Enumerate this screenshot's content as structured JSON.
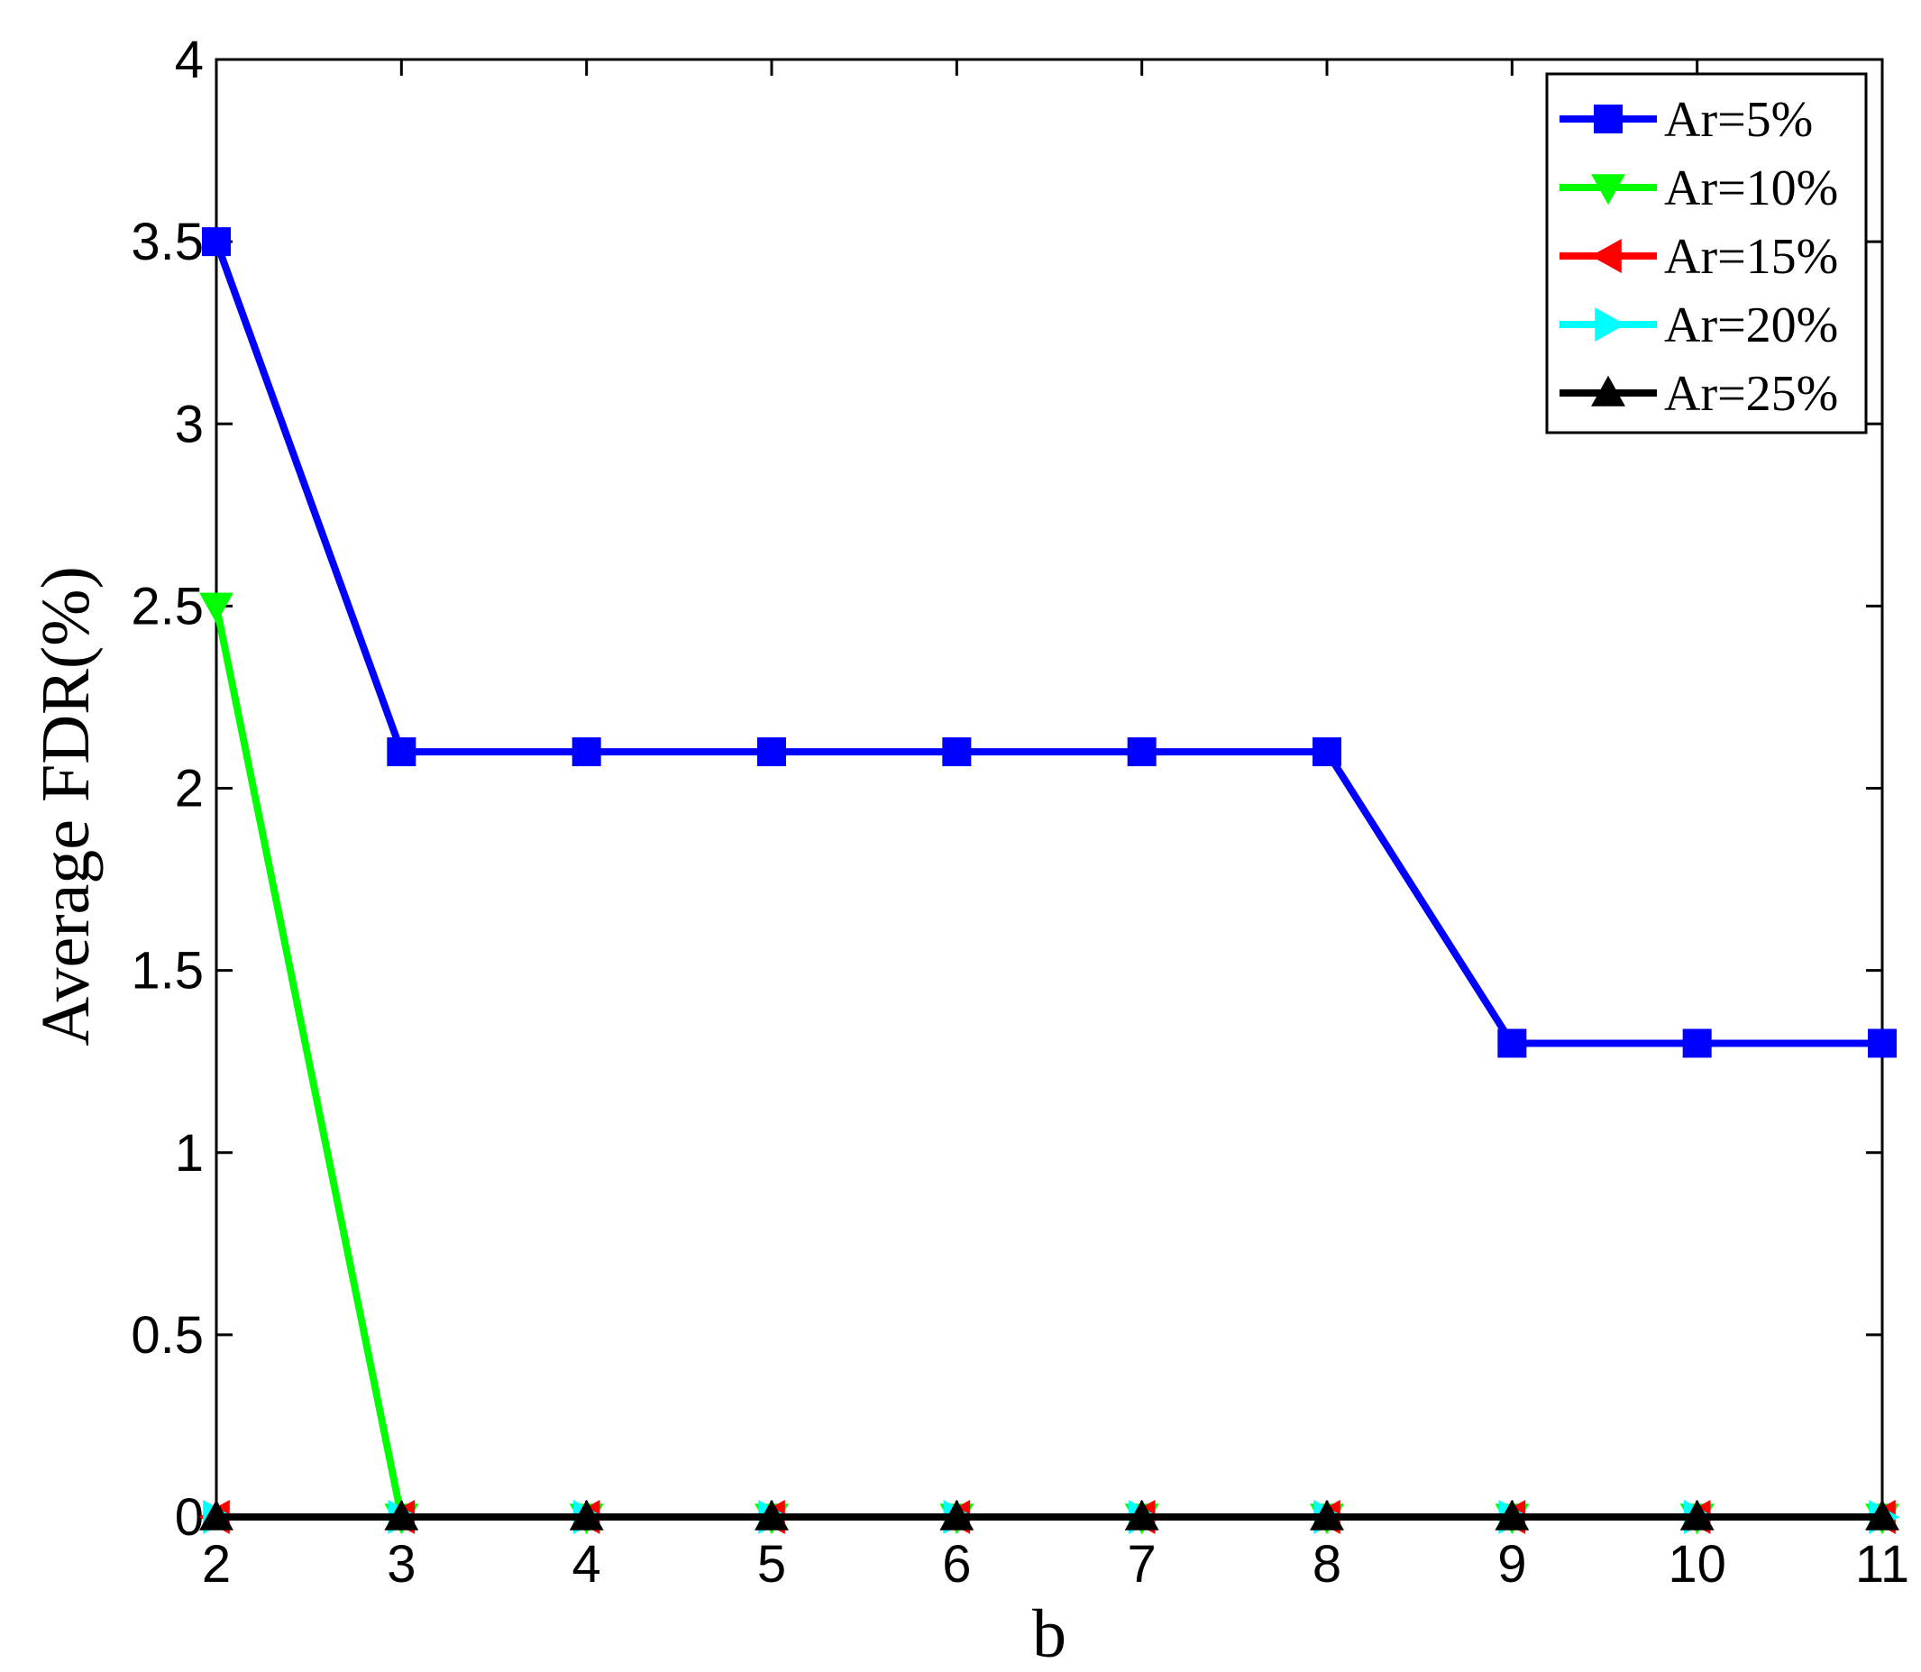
{
  "chart_data": {
    "type": "line",
    "title": "",
    "xlabel": "b",
    "ylabel": "Average FDR(%)",
    "x": [
      2,
      3,
      4,
      5,
      6,
      7,
      8,
      9,
      10,
      11
    ],
    "xlim": [
      2,
      11
    ],
    "ylim": [
      0,
      4
    ],
    "x_ticks": [
      "2",
      "3",
      "4",
      "5",
      "6",
      "7",
      "8",
      "9",
      "10",
      "11"
    ],
    "y_ticks": [
      "0",
      "0.5",
      "1",
      "1.5",
      "2",
      "2.5",
      "3",
      "3.5",
      "4"
    ],
    "grid": false,
    "legend_position": "top-right",
    "series": [
      {
        "name": "Ar=5%",
        "color": "#0000ff",
        "marker": "square",
        "values": [
          3.5,
          2.1,
          2.1,
          2.1,
          2.1,
          2.1,
          2.1,
          1.3,
          1.3,
          1.3
        ]
      },
      {
        "name": "Ar=10%",
        "color": "#00ff00",
        "marker": "triangle-down",
        "values": [
          2.5,
          0,
          0,
          0,
          0,
          0,
          0,
          0,
          0,
          0
        ]
      },
      {
        "name": "Ar=15%",
        "color": "#ff0000",
        "marker": "triangle-left",
        "values": [
          0,
          0,
          0,
          0,
          0,
          0,
          0,
          0,
          0,
          0
        ]
      },
      {
        "name": "Ar=20%",
        "color": "#00ffff",
        "marker": "triangle-right",
        "values": [
          0,
          0,
          0,
          0,
          0,
          0,
          0,
          0,
          0,
          0
        ]
      },
      {
        "name": "Ar=25%",
        "color": "#000000",
        "marker": "triangle-up",
        "values": [
          0,
          0,
          0,
          0,
          0,
          0,
          0,
          0,
          0,
          0
        ]
      }
    ]
  }
}
